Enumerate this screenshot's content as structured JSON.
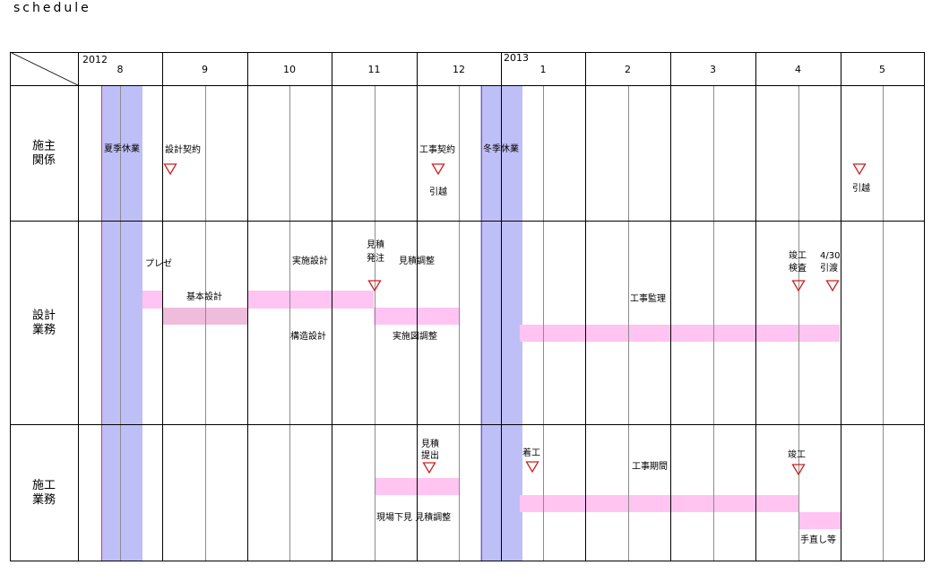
{
  "page_title": "schedule",
  "colors": {
    "holiday_band": "#bfbff7",
    "holiday_line": "#d03c5a",
    "task_bar": "#ffc4f2",
    "task_bar_dark": "#f0bcdc",
    "milestone": "#cc2020",
    "grid": "#000000",
    "sub_grid": "#8c8c8c"
  },
  "timeline": {
    "years": [
      {
        "label": "2012",
        "month": "8"
      },
      {
        "label": "2013",
        "month": "1"
      }
    ],
    "months": [
      "8",
      "9",
      "10",
      "11",
      "12",
      "1",
      "2",
      "3",
      "4",
      "5"
    ]
  },
  "rows": [
    {
      "id": "client",
      "label_lines": [
        "施主",
        "関係"
      ]
    },
    {
      "id": "design",
      "label_lines": [
        "設計",
        "業務"
      ]
    },
    {
      "id": "construction",
      "label_lines": [
        "施工",
        "業務"
      ]
    }
  ],
  "holidays": [
    {
      "label": "夏季休業",
      "start_month": 0,
      "start_half": 1,
      "end_month": 0,
      "end_half": 2
    },
    {
      "label": "冬季休業",
      "start_month": 4,
      "start_half": 2,
      "end_month": 5,
      "end_half": 1
    }
  ],
  "bars": [
    {
      "row": "design",
      "label": "プレゼ",
      "start": "8月下旬",
      "end": "8月末"
    },
    {
      "row": "design",
      "label": "基本設計",
      "start": "9月",
      "end": "9月末",
      "shade": "dark"
    },
    {
      "row": "design",
      "label": "実施設計",
      "start": "10月",
      "end": "11月上旬"
    },
    {
      "row": "design",
      "label": "構造設計",
      "start": "10月",
      "end": "11月上旬"
    },
    {
      "row": "design",
      "label": "見積調整",
      "start": "11月中旬",
      "end": "12月末"
    },
    {
      "row": "design",
      "label": "実施図調整",
      "start": "11月中旬",
      "end": "12月末"
    },
    {
      "row": "design",
      "label": "工事監理",
      "start": "1月",
      "end": "4月末"
    },
    {
      "row": "construction",
      "label": "現場下見 見積調整",
      "start": "11月中旬",
      "end": "12月末"
    },
    {
      "row": "construction",
      "label": "工事期間",
      "start": "1月",
      "end": "4月上旬"
    },
    {
      "row": "construction",
      "label": "手直し等",
      "start": "4月中旬",
      "end": "4月末"
    }
  ],
  "milestones": [
    {
      "row": "client",
      "label": "設計契約",
      "date": "9月"
    },
    {
      "row": "client",
      "label": "工事契約",
      "date": "12月"
    },
    {
      "row": "client",
      "label": "引越",
      "date": "12月"
    },
    {
      "row": "client",
      "label": "引越",
      "date": "5月"
    },
    {
      "row": "design",
      "label_lines": [
        "見積",
        "発注"
      ],
      "date": "11月"
    },
    {
      "row": "design",
      "label_lines": [
        "竣工",
        "検査"
      ],
      "date": "4月"
    },
    {
      "row": "design",
      "label_lines": [
        "4/30",
        "引渡"
      ],
      "date": "4/30"
    },
    {
      "row": "construction",
      "label_lines": [
        "見積",
        "提出"
      ],
      "date": "12月"
    },
    {
      "row": "construction",
      "label": "着工",
      "date": "1月"
    },
    {
      "row": "construction",
      "label": "竣工",
      "date": "4月"
    }
  ]
}
